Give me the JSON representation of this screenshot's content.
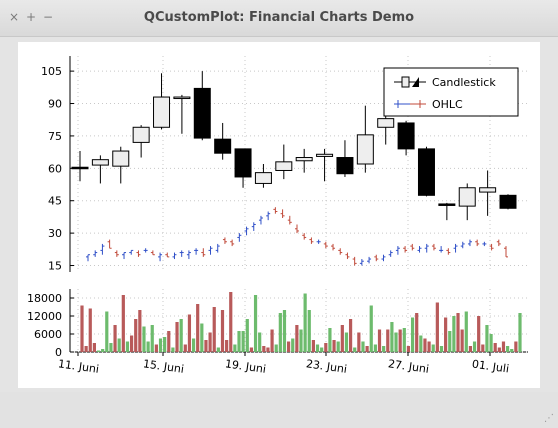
{
  "window": {
    "title": "QCustomPlot: Financial Charts Demo",
    "close_glyph": "×",
    "maximize_glyph": "+",
    "minimize_glyph": "−"
  },
  "chart_data": {
    "type": "candlestick",
    "legend": [
      "Candlestick",
      "OHLC"
    ],
    "price_ticks": [
      "105",
      "90",
      "75",
      "60",
      "45",
      "30",
      "15"
    ],
    "volume_ticks": [
      "18000",
      "12000",
      "6000",
      "0"
    ],
    "date_ticks": [
      "11. Juni",
      "15. Juni",
      "19. Juni",
      "23. Juni",
      "27. Juni",
      "01. Juli"
    ],
    "price_ylim": [
      12,
      112
    ],
    "volume_ylim": [
      0,
      21000
    ],
    "candles": [
      {
        "o": 60.5,
        "c": 60.0,
        "h": 68,
        "l": 54
      },
      {
        "o": 61.5,
        "c": 64.0,
        "h": 66,
        "l": 53
      },
      {
        "o": 61.0,
        "c": 68.0,
        "h": 70,
        "l": 53
      },
      {
        "o": 72.0,
        "c": 79.0,
        "h": 80,
        "l": 65
      },
      {
        "o": 79.0,
        "c": 93.0,
        "h": 104,
        "l": 78
      },
      {
        "o": 92.5,
        "c": 93.0,
        "h": 94,
        "l": 76
      },
      {
        "o": 97.0,
        "c": 74.0,
        "h": 105,
        "l": 73
      },
      {
        "o": 73.5,
        "c": 67.0,
        "h": 81,
        "l": 64
      },
      {
        "o": 69.0,
        "c": 56.0,
        "h": 69,
        "l": 51
      },
      {
        "o": 53.0,
        "c": 58.0,
        "h": 62,
        "l": 51
      },
      {
        "o": 59.0,
        "c": 63.0,
        "h": 71,
        "l": 55
      },
      {
        "o": 63.5,
        "c": 65.0,
        "h": 69,
        "l": 58
      },
      {
        "o": 65.5,
        "c": 66.5,
        "h": 69,
        "l": 54
      },
      {
        "o": 65.0,
        "c": 57.5,
        "h": 73,
        "l": 56
      },
      {
        "o": 62.0,
        "c": 75.5,
        "h": 89,
        "l": 58
      },
      {
        "o": 79.0,
        "c": 83.0,
        "h": 88,
        "l": 71
      },
      {
        "o": 81.0,
        "c": 69.0,
        "h": 82,
        "l": 66
      },
      {
        "o": 69.0,
        "c": 47.5,
        "h": 70,
        "l": 47
      },
      {
        "o": 43.5,
        "c": 43.0,
        "h": 44,
        "l": 36
      },
      {
        "o": 42.5,
        "c": 51.0,
        "h": 53,
        "l": 36
      },
      {
        "o": 49.0,
        "c": 51.0,
        "h": 59,
        "l": 38
      },
      {
        "o": 47.5,
        "c": 41.5,
        "h": 48,
        "l": 41
      }
    ],
    "ohlc": [
      [
        19,
        17,
        20,
        20
      ],
      [
        20,
        19,
        22,
        21
      ],
      [
        22,
        20,
        25,
        24
      ],
      [
        26,
        23,
        27,
        23
      ],
      [
        21,
        19,
        22,
        20
      ],
      [
        20,
        18,
        21,
        21
      ],
      [
        21,
        20,
        22,
        22
      ],
      [
        21,
        19,
        22,
        20
      ],
      [
        22,
        21,
        23,
        22
      ],
      [
        21,
        20,
        22,
        20
      ],
      [
        19,
        17,
        21,
        20
      ],
      [
        20,
        19,
        21,
        19
      ],
      [
        19,
        18,
        21,
        20
      ],
      [
        21,
        19,
        22,
        21
      ],
      [
        20,
        18,
        22,
        21
      ],
      [
        22,
        20,
        23,
        22
      ],
      [
        21,
        19,
        23,
        20
      ],
      [
        22,
        20,
        24,
        23
      ],
      [
        22,
        21,
        25,
        24
      ],
      [
        27,
        25,
        28,
        26
      ],
      [
        26,
        24,
        27,
        25
      ],
      [
        28,
        26,
        30,
        29
      ],
      [
        31,
        29,
        33,
        32
      ],
      [
        33,
        31,
        35,
        34
      ],
      [
        36,
        34,
        38,
        37
      ],
      [
        38,
        36,
        40,
        39
      ],
      [
        41,
        39,
        42,
        40
      ],
      [
        39,
        37,
        41,
        38
      ],
      [
        36,
        34,
        38,
        35
      ],
      [
        32,
        30,
        34,
        31
      ],
      [
        29,
        27,
        30,
        28
      ],
      [
        27,
        25,
        28,
        26
      ],
      [
        26,
        25,
        27,
        26
      ],
      [
        25,
        23,
        26,
        24
      ],
      [
        24,
        22,
        25,
        23
      ],
      [
        22,
        20,
        23,
        21
      ],
      [
        20,
        18,
        21,
        19
      ],
      [
        18,
        15,
        19,
        16
      ],
      [
        16,
        15,
        18,
        17
      ],
      [
        17,
        16,
        19,
        18
      ],
      [
        19,
        17,
        20,
        18
      ],
      [
        18,
        17,
        20,
        19
      ],
      [
        20,
        19,
        22,
        21
      ],
      [
        22,
        20,
        24,
        23
      ],
      [
        23,
        21,
        24,
        22
      ],
      [
        24,
        22,
        25,
        23
      ],
      [
        22,
        21,
        24,
        23
      ],
      [
        23,
        21,
        25,
        24
      ],
      [
        24,
        22,
        25,
        23
      ],
      [
        22,
        21,
        24,
        22
      ],
      [
        22,
        20,
        23,
        21
      ],
      [
        23,
        21,
        25,
        24
      ],
      [
        24,
        23,
        26,
        25
      ],
      [
        25,
        24,
        27,
        26
      ],
      [
        26,
        24,
        27,
        25
      ],
      [
        25,
        24,
        26,
        25
      ],
      [
        24,
        22,
        25,
        23
      ],
      [
        26,
        24,
        27,
        25
      ],
      [
        23,
        19,
        24,
        19
      ]
    ],
    "volume": [
      [
        15500,
        "r"
      ],
      [
        2000,
        "r"
      ],
      [
        14500,
        "r"
      ],
      [
        3000,
        "r"
      ],
      [
        500,
        "g"
      ],
      [
        1000,
        "g"
      ],
      [
        13500,
        "g"
      ],
      [
        3000,
        "g"
      ],
      [
        9000,
        "r"
      ],
      [
        4500,
        "g"
      ],
      [
        19000,
        "r"
      ],
      [
        3500,
        "g"
      ],
      [
        5500,
        "r"
      ],
      [
        11000,
        "r"
      ],
      [
        14000,
        "r"
      ],
      [
        8500,
        "g"
      ],
      [
        3500,
        "g"
      ],
      [
        9000,
        "g"
      ],
      [
        2500,
        "r"
      ],
      [
        4500,
        "g"
      ],
      [
        5000,
        "g"
      ],
      [
        7000,
        "r"
      ],
      [
        1500,
        "g"
      ],
      [
        10000,
        "r"
      ],
      [
        11000,
        "g"
      ],
      [
        2500,
        "r"
      ],
      [
        12500,
        "r"
      ],
      [
        4500,
        "g"
      ],
      [
        16000,
        "r"
      ],
      [
        9500,
        "g"
      ],
      [
        4000,
        "r"
      ],
      [
        6500,
        "r"
      ],
      [
        15000,
        "r"
      ],
      [
        1500,
        "g"
      ],
      [
        14000,
        "r"
      ],
      [
        4000,
        "r"
      ],
      [
        20000,
        "r"
      ],
      [
        2500,
        "g"
      ],
      [
        7000,
        "g"
      ],
      [
        7000,
        "g"
      ],
      [
        11000,
        "g"
      ],
      [
        1500,
        "r"
      ],
      [
        19000,
        "g"
      ],
      [
        6500,
        "g"
      ],
      [
        2000,
        "r"
      ],
      [
        1500,
        "r"
      ],
      [
        7500,
        "r"
      ],
      [
        2500,
        "g"
      ],
      [
        13000,
        "g"
      ],
      [
        14000,
        "g"
      ],
      [
        3500,
        "r"
      ],
      [
        4500,
        "g"
      ],
      [
        9000,
        "r"
      ],
      [
        7500,
        "g"
      ],
      [
        19500,
        "g"
      ],
      [
        14000,
        "g"
      ],
      [
        4000,
        "r"
      ],
      [
        2500,
        "g"
      ],
      [
        1500,
        "g"
      ],
      [
        3000,
        "r"
      ],
      [
        8000,
        "g"
      ],
      [
        4000,
        "r"
      ],
      [
        3500,
        "g"
      ],
      [
        9000,
        "r"
      ],
      [
        6500,
        "g"
      ],
      [
        11000,
        "r"
      ],
      [
        1500,
        "g"
      ],
      [
        6500,
        "r"
      ],
      [
        3500,
        "g"
      ],
      [
        2000,
        "r"
      ],
      [
        15500,
        "g"
      ],
      [
        2500,
        "g"
      ],
      [
        7500,
        "r"
      ],
      [
        2000,
        "g"
      ],
      [
        7500,
        "r"
      ],
      [
        10000,
        "g"
      ],
      [
        6500,
        "g"
      ],
      [
        7500,
        "r"
      ],
      [
        8000,
        "g"
      ],
      [
        2000,
        "r"
      ],
      [
        11500,
        "g"
      ],
      [
        13000,
        "r"
      ],
      [
        5500,
        "g"
      ],
      [
        4500,
        "r"
      ],
      [
        3500,
        "r"
      ],
      [
        2500,
        "g"
      ],
      [
        16500,
        "r"
      ],
      [
        2000,
        "g"
      ],
      [
        11500,
        "r"
      ],
      [
        7000,
        "g"
      ],
      [
        12000,
        "g"
      ],
      [
        13000,
        "r"
      ],
      [
        7500,
        "r"
      ],
      [
        13500,
        "g"
      ],
      [
        2000,
        "r"
      ],
      [
        3500,
        "g"
      ],
      [
        12000,
        "r"
      ],
      [
        2500,
        "r"
      ],
      [
        9000,
        "g"
      ],
      [
        6000,
        "g"
      ],
      [
        3000,
        "r"
      ],
      [
        1500,
        "r"
      ],
      [
        3500,
        "r"
      ],
      [
        2000,
        "g"
      ],
      [
        1000,
        "g"
      ],
      [
        3500,
        "r"
      ],
      [
        13000,
        "g"
      ]
    ],
    "colors": {
      "up": "#eeeeee",
      "down": "#000000",
      "ohlc_up": "#3050c8",
      "ohlc_down": "#c04a3a",
      "vol_up": "#6dbb6d",
      "vol_down": "#b85a5a"
    }
  }
}
